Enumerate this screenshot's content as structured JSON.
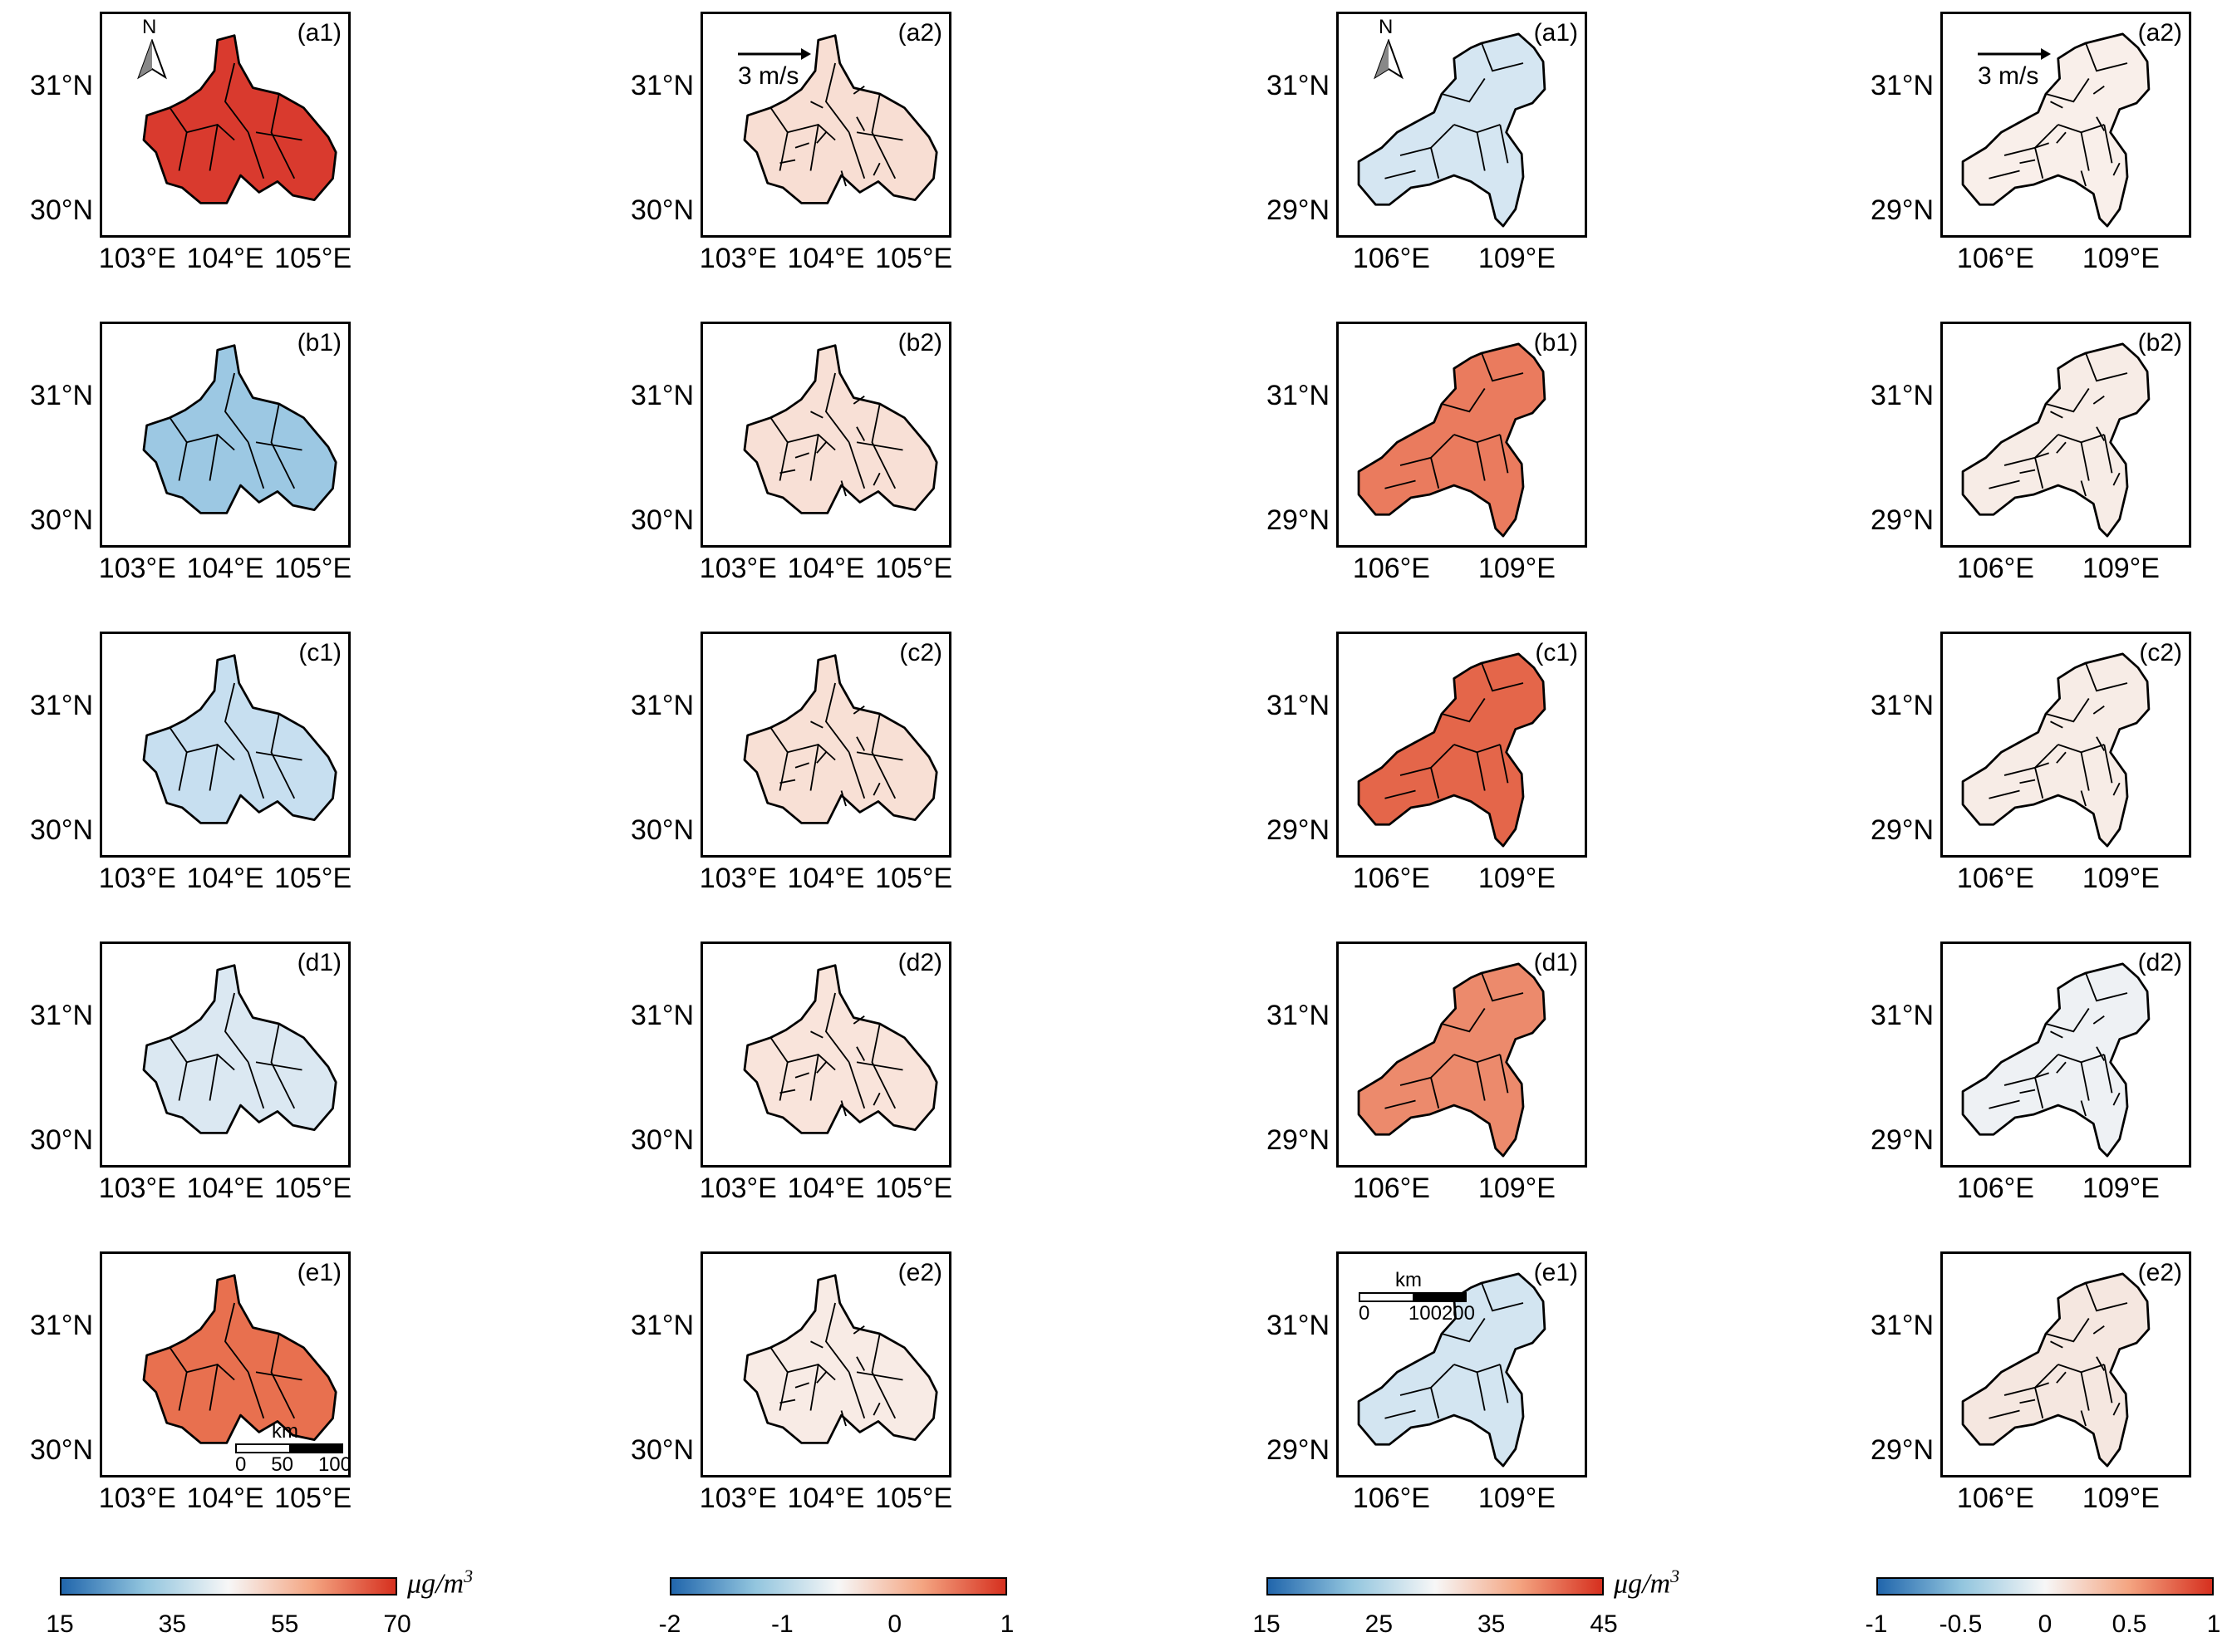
{
  "columns": [
    {
      "id": "chengdu-conc",
      "region": "chengdu",
      "suffix": "1",
      "x_ticks": [
        "103°E",
        "104°E",
        "105°E"
      ],
      "y_ticks": [
        "31°N",
        "30°N"
      ],
      "colorbar": {
        "ticks": [
          "15",
          "35",
          "55",
          "70"
        ],
        "unit": "μg/m",
        "unit_sup": "3",
        "colors": [
          "#2166ac",
          "#92c5de",
          "#f7f7f7",
          "#f4a582",
          "#d6301f"
        ]
      },
      "north_label": "N",
      "scale": {
        "unit": "km",
        "ticks": [
          "0",
          "50",
          "100"
        ]
      }
    },
    {
      "id": "chengdu-diff",
      "region": "chengdu",
      "suffix": "2",
      "x_ticks": [
        "103°E",
        "104°E",
        "105°E"
      ],
      "y_ticks": [
        "31°N",
        "30°N"
      ],
      "colorbar": {
        "ticks": [
          "-2",
          "-1",
          "0",
          "1"
        ],
        "unit": "",
        "unit_sup": "",
        "colors": [
          "#2166ac",
          "#92c5de",
          "#f7f7f7",
          "#f4a582",
          "#d6301f"
        ]
      },
      "wind_label": "3 m/s"
    },
    {
      "id": "chongqing-conc",
      "region": "chongqing",
      "suffix": "1",
      "x_ticks": [
        "106°E",
        "109°E"
      ],
      "y_ticks": [
        "31°N",
        "29°N"
      ],
      "colorbar": {
        "ticks": [
          "15",
          "25",
          "35",
          "45"
        ],
        "unit": "μg/m",
        "unit_sup": "3",
        "colors": [
          "#2166ac",
          "#92c5de",
          "#f7f7f7",
          "#f4a582",
          "#d6301f"
        ]
      },
      "north_label": "N",
      "scale": {
        "unit": "km",
        "ticks": [
          "0",
          "100200"
        ]
      }
    },
    {
      "id": "chongqing-diff",
      "region": "chongqing",
      "suffix": "2",
      "x_ticks": [
        "106°E",
        "109°E"
      ],
      "y_ticks": [
        "31°N",
        "29°N"
      ],
      "colorbar": {
        "ticks": [
          "-1",
          "-0.5",
          "0",
          "0.5",
          "1"
        ],
        "unit": "",
        "unit_sup": "",
        "colors": [
          "#2166ac",
          "#92c5de",
          "#f7f7f7",
          "#f4a582",
          "#d6301f"
        ]
      },
      "wind_label": "3 m/s"
    }
  ],
  "rows": [
    "a",
    "b",
    "c",
    "d",
    "e"
  ],
  "panels": [
    {
      "label": "(a1)",
      "fill": "#d93a2e"
    },
    {
      "label": "(a2)",
      "fill": "#f8ded3"
    },
    {
      "label": "(a1)",
      "fill": "#d5e6f2"
    },
    {
      "label": "(a2)",
      "fill": "#f9efea"
    },
    {
      "label": "(b1)",
      "fill": "#9cc8e3"
    },
    {
      "label": "(b2)",
      "fill": "#f8e0d6"
    },
    {
      "label": "(b1)",
      "fill": "#ea7b5e"
    },
    {
      "label": "(b2)",
      "fill": "#f7ece6"
    },
    {
      "label": "(c1)",
      "fill": "#c7dff0"
    },
    {
      "label": "(c2)",
      "fill": "#f8e0d5"
    },
    {
      "label": "(c1)",
      "fill": "#e4664a"
    },
    {
      "label": "(c2)",
      "fill": "#f7ece6"
    },
    {
      "label": "(d1)",
      "fill": "#dbe8f2"
    },
    {
      "label": "(d2)",
      "fill": "#f9e4db"
    },
    {
      "label": "(d1)",
      "fill": "#ec8a6c"
    },
    {
      "label": "(d2)",
      "fill": "#eef1f4"
    },
    {
      "label": "(e1)",
      "fill": "#e8704f"
    },
    {
      "label": "(e2)",
      "fill": "#f8ebe5"
    },
    {
      "label": "(e1)",
      "fill": "#d3e5f1"
    },
    {
      "label": "(e2)",
      "fill": "#f5e7e0"
    }
  ]
}
